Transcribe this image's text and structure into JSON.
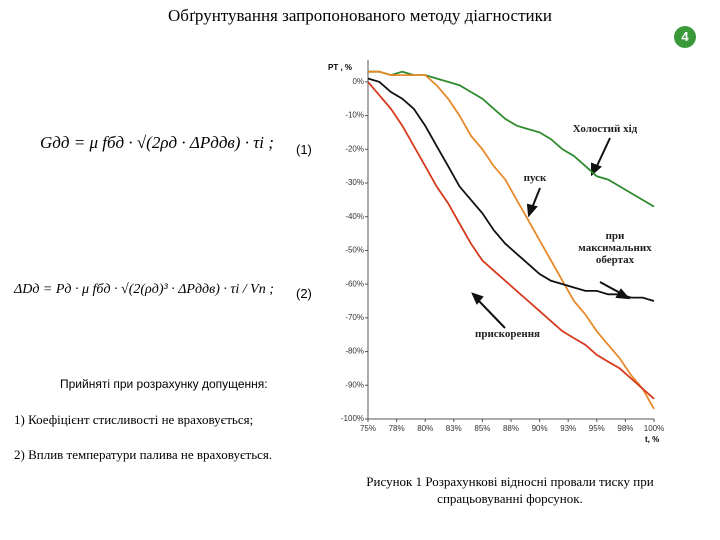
{
  "title": "Обґрунтування запропонованого методу діагностики",
  "slide_number": "4",
  "equations": [
    {
      "formula": "Gдд = μ fбд · √(2ρд · ΔPддв) · τi ;",
      "number": "(1)"
    },
    {
      "formula": "ΔDд = Pд · μ fбд · √(2(ρд)³ · ΔPддв) · τi / Vп ;",
      "number": "(2)"
    }
  ],
  "assumptions": {
    "heading": "Прийняті при розрахунку допущення:",
    "items": [
      "1) Коефіцієнт стисливості не враховується;",
      "2) Вплив температури палива не враховується."
    ]
  },
  "caption": "Рисунок 1 Розрахункові відносні провали тиску при спрацьовуванні форсунок.",
  "chart_data": {
    "type": "line",
    "y_label": "PT , %",
    "x_label": "t, %",
    "x": [
      75,
      76,
      77,
      78,
      79,
      80,
      81,
      82,
      83,
      84,
      85,
      86,
      87,
      88,
      89,
      90,
      91,
      92,
      93,
      94,
      95,
      96,
      97,
      98,
      99,
      100
    ],
    "xlim": [
      75,
      100
    ],
    "ylim": [
      -100,
      5
    ],
    "xticks": [
      {
        "value": 75,
        "label": "75%"
      },
      {
        "value": 77.5,
        "label": "78%"
      },
      {
        "value": 80,
        "label": "80%"
      },
      {
        "value": 82.5,
        "label": "83%"
      },
      {
        "value": 85,
        "label": "85%"
      },
      {
        "value": 87.5,
        "label": "88%"
      },
      {
        "value": 90,
        "label": "90%"
      },
      {
        "value": 92.5,
        "label": "93%"
      },
      {
        "value": 95,
        "label": "95%"
      },
      {
        "value": 97.5,
        "label": "98%"
      },
      {
        "value": 100,
        "label": "100%"
      }
    ],
    "yticks": [
      {
        "value": 0,
        "label": "0%"
      },
      {
        "value": -10,
        "label": "-10%"
      },
      {
        "value": -20,
        "label": "-20%"
      },
      {
        "value": -30,
        "label": "-30%"
      },
      {
        "value": -40,
        "label": "-40%"
      },
      {
        "value": -50,
        "label": "-50%"
      },
      {
        "value": -60,
        "label": "-60%"
      },
      {
        "value": -70,
        "label": "-70%"
      },
      {
        "value": -80,
        "label": "-80%"
      },
      {
        "value": -90,
        "label": "-90%"
      },
      {
        "value": -100,
        "label": "-100%"
      }
    ],
    "series": [
      {
        "name": "Холостий хід",
        "color": "#2e8b2e",
        "values": [
          3,
          3,
          2,
          3,
          2,
          2,
          1,
          0,
          -1,
          -3,
          -5,
          -8,
          -11,
          -13,
          -14,
          -15,
          -17,
          -20,
          -22,
          -25,
          -28,
          -29,
          -31,
          -33,
          -35,
          -37
        ]
      },
      {
        "name": "пуск",
        "color": "#e8892a",
        "values": [
          3,
          3,
          2,
          2,
          2,
          2,
          -1,
          -5,
          -10,
          -16,
          -20,
          -25,
          -29,
          -35,
          -41,
          -47,
          -53,
          -59,
          -65,
          -69,
          -74,
          -78,
          -82,
          -87,
          -91,
          -97
        ]
      },
      {
        "name": "при максимальних обертах",
        "color": "#111111",
        "values": [
          1,
          0,
          -3,
          -5,
          -8,
          -13,
          -19,
          -25,
          -31,
          -35,
          -39,
          -44,
          -48,
          -51,
          -54,
          -57,
          -59,
          -60,
          -61,
          -62,
          -62,
          -63,
          -63,
          -64,
          -64,
          -65
        ]
      },
      {
        "name": "прискорення",
        "color": "#d63a1e",
        "values": [
          0,
          -4,
          -8,
          -13,
          -19,
          -25,
          -31,
          -36,
          -42,
          -48,
          -53,
          -56,
          -59,
          -62,
          -65,
          -68,
          -71,
          -74,
          -76,
          -78,
          -81,
          -83,
          -85,
          -88,
          -91,
          -94
        ]
      }
    ]
  }
}
